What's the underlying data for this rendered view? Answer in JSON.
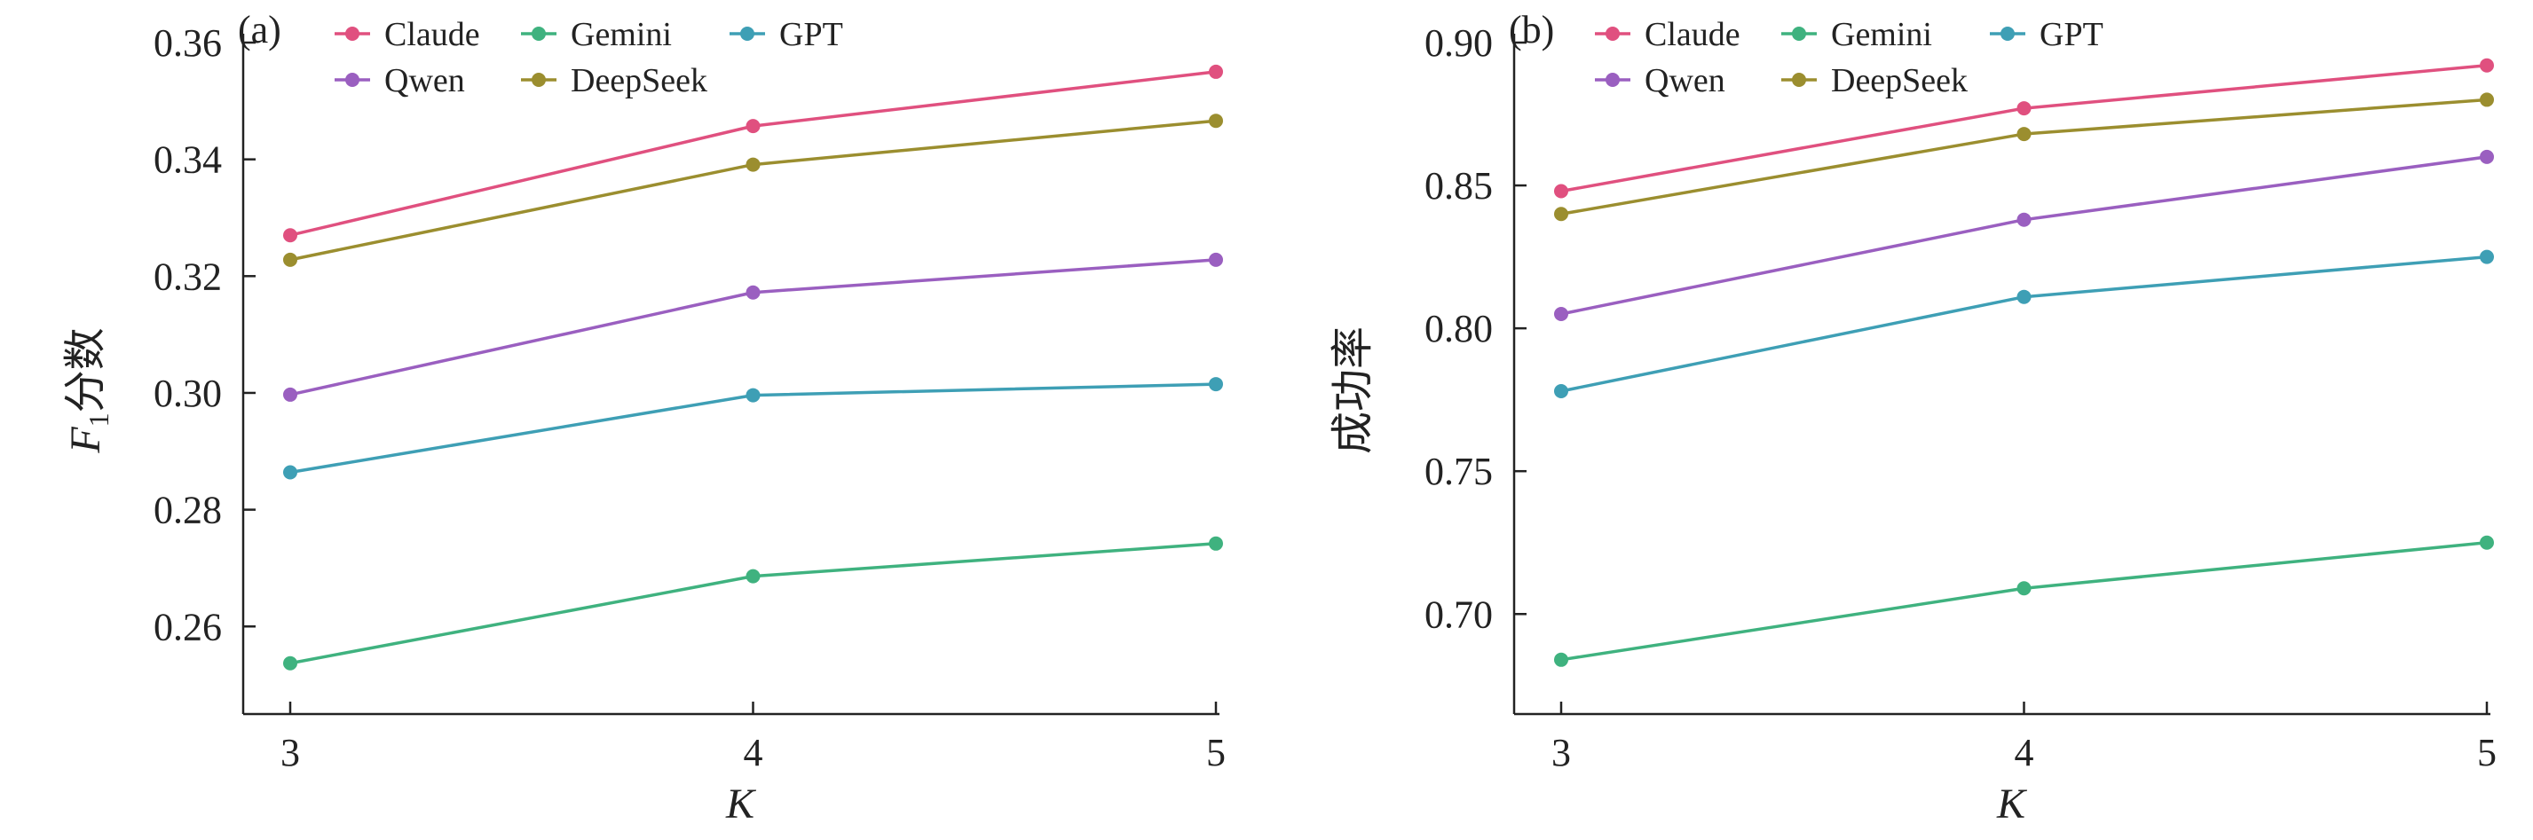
{
  "chart_data": [
    {
      "panel_label": "(a)",
      "type": "line",
      "x": [
        3,
        4,
        5
      ],
      "x_ticks": [
        "3",
        "4",
        "5"
      ],
      "xlabel": "K",
      "ylabel_main": "F",
      "ylabel_sub": "1",
      "ylabel_rest": "分数",
      "ylim": [
        0.245,
        0.36
      ],
      "y_ticks": [
        "0.26",
        "0.28",
        "0.30",
        "0.32",
        "0.34",
        "0.36"
      ],
      "grid": false,
      "legend_position": "top",
      "series": [
        {
          "name": "Claude",
          "color": "#e0507f",
          "values": [
            0.327,
            0.3457,
            0.355
          ]
        },
        {
          "name": "Gemini",
          "color": "#3fb27f",
          "values": [
            0.2537,
            0.2686,
            0.2742
          ]
        },
        {
          "name": "GPT",
          "color": "#3e9fb5",
          "values": [
            0.2864,
            0.2996,
            0.3015
          ]
        },
        {
          "name": "Qwen",
          "color": "#9a5fc0",
          "values": [
            0.2997,
            0.3172,
            0.3228
          ]
        },
        {
          "name": "DeepSeek",
          "color": "#9b8e2f",
          "values": [
            0.3228,
            0.3391,
            0.3466
          ]
        }
      ]
    },
    {
      "panel_label": "(b)",
      "type": "line",
      "x": [
        3,
        4,
        5
      ],
      "x_ticks": [
        "3",
        "4",
        "5"
      ],
      "xlabel": "K",
      "ylabel_main": "成功率",
      "ylabel_sub": "",
      "ylabel_rest": "",
      "ylim": [
        0.665,
        0.9
      ],
      "y_ticks": [
        "0.70",
        "0.75",
        "0.80",
        "0.85",
        "0.90"
      ],
      "grid": false,
      "legend_position": "top",
      "series": [
        {
          "name": "Claude",
          "color": "#e0507f",
          "values": [
            0.848,
            0.877,
            0.892
          ]
        },
        {
          "name": "Gemini",
          "color": "#3fb27f",
          "values": [
            0.684,
            0.709,
            0.725
          ]
        },
        {
          "name": "GPT",
          "color": "#3e9fb5",
          "values": [
            0.778,
            0.811,
            0.825
          ]
        },
        {
          "name": "Qwen",
          "color": "#9a5fc0",
          "values": [
            0.805,
            0.838,
            0.86
          ]
        },
        {
          "name": "DeepSeek",
          "color": "#9b8e2f",
          "values": [
            0.84,
            0.868,
            0.88
          ]
        }
      ]
    }
  ]
}
